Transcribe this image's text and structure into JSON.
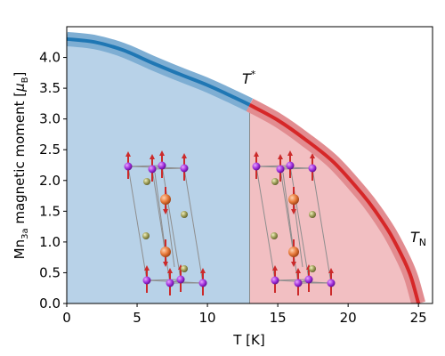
{
  "chart_data": {
    "type": "line",
    "xlabel": "T [K]",
    "ylabel": {
      "base": "Mn",
      "sub": "3a",
      "rest": " magnetic moment [",
      "mu": "μ",
      "mu_sub": "B",
      "close": "]"
    },
    "xlim": [
      0,
      26
    ],
    "ylim": [
      0,
      4.5
    ],
    "xticks": [
      0,
      5,
      10,
      15,
      20,
      25
    ],
    "yticks": [
      0.0,
      0.5,
      1.0,
      1.5,
      2.0,
      2.5,
      3.0,
      3.5,
      4.0
    ],
    "xtick_labels": [
      "0",
      "5",
      "10",
      "15",
      "20",
      "25"
    ],
    "ytick_labels": [
      "0.0",
      "0.5",
      "1.0",
      "1.5",
      "2.0",
      "2.5",
      "3.0",
      "3.5",
      "4.0"
    ],
    "T_star": 13.0,
    "T_N": 25.0,
    "annotations": {
      "t_star": {
        "base": "T",
        "sup": "*"
      },
      "t_n": {
        "base": "T",
        "sub": "N"
      }
    },
    "series": [
      {
        "color": "#1f77b4",
        "x": [
          0,
          2,
          4,
          6,
          8,
          10,
          12,
          13
        ],
        "y": [
          4.3,
          4.25,
          4.12,
          3.92,
          3.73,
          3.55,
          3.34,
          3.23
        ]
      },
      {
        "color": "#d62728",
        "x": [
          13,
          15,
          17,
          19,
          21,
          22,
          23,
          24,
          24.5,
          25
        ],
        "y": [
          3.23,
          2.98,
          2.66,
          2.29,
          1.78,
          1.48,
          1.13,
          0.69,
          0.41,
          0.0
        ]
      }
    ],
    "regions": [
      {
        "name": "low-T phase",
        "x_from": 0,
        "x_to": 13,
        "color": "#b8d2e8"
      },
      {
        "name": "high-T phase",
        "x_from": 13,
        "x_to": 25,
        "color": "#f2bfc2"
      }
    ],
    "band_colors": {
      "blue": "#7eaed3",
      "red": "#e28c90"
    },
    "grid": false,
    "legend": "none"
  }
}
